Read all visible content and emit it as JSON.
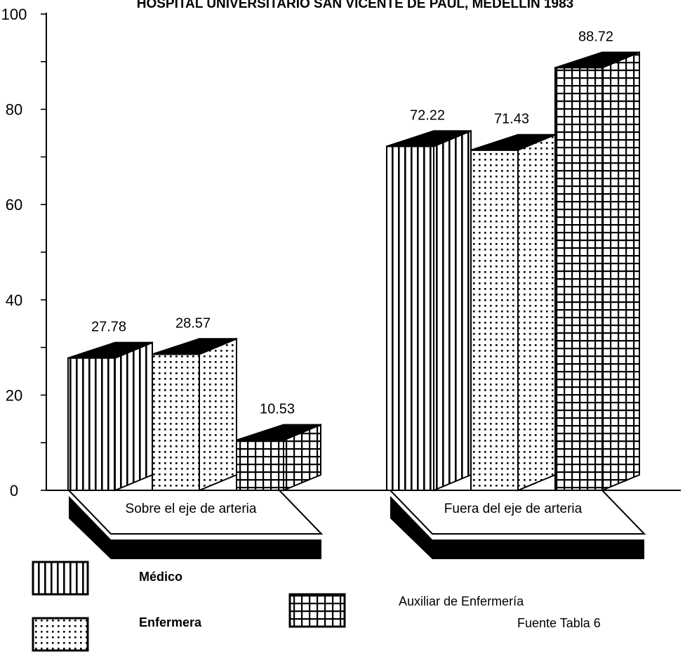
{
  "chart_data": {
    "type": "bar",
    "title": "HOSPITAL UNIVERSITARIO SAN VICENTE DE PAUL, MEDELLIN 1983",
    "categories": [
      "Sobre el eje de arteria",
      "Fuera del eje de arteria"
    ],
    "series": [
      {
        "name": "Médico",
        "values": [
          27.78,
          72.22
        ],
        "value_labels": [
          "27.78",
          "72.22"
        ],
        "pattern": "vertical-lines"
      },
      {
        "name": "Enfermera",
        "values": [
          28.57,
          71.43
        ],
        "value_labels": [
          "28.57",
          "71.43"
        ],
        "pattern": "dots"
      },
      {
        "name": "Auxiliar de Enfermería",
        "values": [
          10.53,
          88.72
        ],
        "value_labels": [
          "10.53",
          "88.72"
        ],
        "pattern": "grid"
      }
    ],
    "ylim": [
      0,
      100
    ],
    "yticks": [
      "0",
      "20",
      "40",
      "60",
      "80",
      "100"
    ],
    "xlabel": "",
    "ylabel": "",
    "grid": false,
    "legend_position": "bottom",
    "three_d": true
  },
  "source_note": "Fuente Tabla 6",
  "colors": {
    "ink": "#000000",
    "paper": "#ffffff"
  }
}
